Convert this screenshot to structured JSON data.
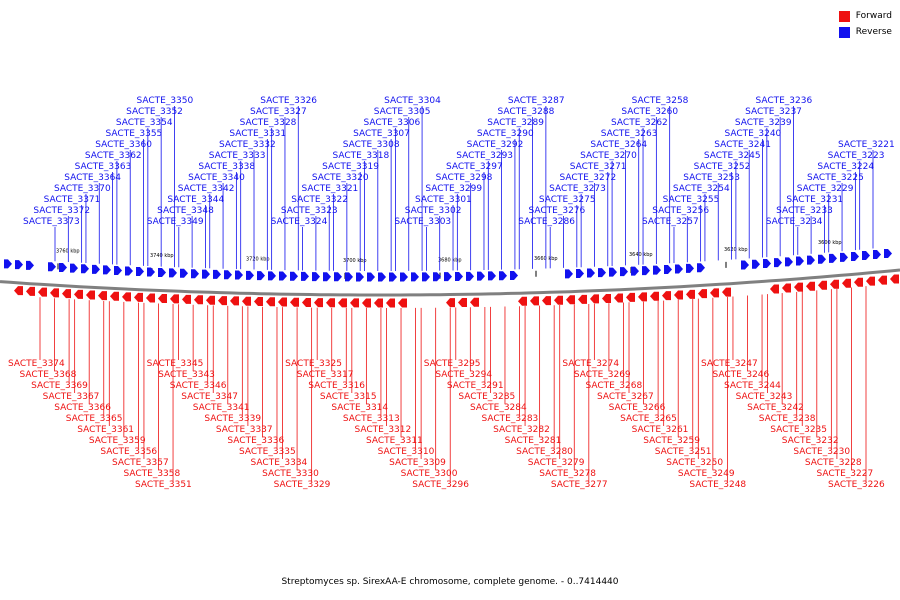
{
  "colors": {
    "forward": "#ee1111",
    "reverse": "#1111ee",
    "axis": "#808080"
  },
  "legend": [
    {
      "label": "Forward",
      "color": "#ee1111"
    },
    {
      "label": "Reverse",
      "color": "#1111ee"
    }
  ],
  "caption": "Streptomyces sp. SirexAA-E chromosome, complete genome. - 0..7414440",
  "ticks": [
    "3760 kbp",
    "3740 kbp",
    "3720 kbp",
    "3700 kbp",
    "3680 kbp",
    "3660 kbp",
    "3640 kbp",
    "3620 kbp",
    "3600 kbp"
  ],
  "reverse_labels": [
    "SACTE_3373",
    "SACTE_3372",
    "SACTE_3371",
    "SACTE_3370",
    "SACTE_3364",
    "SACTE_3363",
    "SACTE_3362",
    "SACTE_3360",
    "SACTE_3355",
    "SACTE_3354",
    "SACTE_3352",
    "SACTE_3350",
    "SACTE_3349",
    "SACTE_3348",
    "SACTE_3344",
    "SACTE_3342",
    "SACTE_3340",
    "SACTE_3338",
    "SACTE_3333",
    "SACTE_3332",
    "SACTE_3331",
    "SACTE_3328",
    "SACTE_3327",
    "SACTE_3326",
    "SACTE_3324",
    "SACTE_3323",
    "SACTE_3322",
    "SACTE_3321",
    "SACTE_3320",
    "SACTE_3319",
    "SACTE_3318",
    "SACTE_3308",
    "SACTE_3307",
    "SACTE_3306",
    "SACTE_3305",
    "SACTE_3304",
    "SACTE_3303",
    "SACTE_3302",
    "SACTE_3301",
    "SACTE_3299",
    "SACTE_3298",
    "SACTE_3297",
    "SACTE_3293",
    "SACTE_3292",
    "SACTE_3290",
    "SACTE_3289",
    "SACTE_3288",
    "SACTE_3287",
    "SACTE_3286",
    "SACTE_3276",
    "SACTE_3275",
    "SACTE_3273",
    "SACTE_3272",
    "SACTE_3271",
    "SACTE_3270",
    "SACTE_3264",
    "SACTE_3263",
    "SACTE_3262",
    "SACTE_3260",
    "SACTE_3258",
    "SACTE_3257",
    "SACTE_3256",
    "SACTE_3255",
    "SACTE_3254",
    "SACTE_3253",
    "SACTE_3252",
    "SACTE_3245",
    "SACTE_3241",
    "SACTE_3240",
    "SACTE_3239",
    "SACTE_3237",
    "SACTE_3236",
    "SACTE_3234",
    "SACTE_3233",
    "SACTE_3231",
    "SACTE_3229",
    "SACTE_3225",
    "SACTE_3224",
    "SACTE_3223",
    "SACTE_3221"
  ],
  "forward_labels": [
    "SACTE_3374",
    "SACTE_3368",
    "SACTE_3369",
    "SACTE_3367",
    "SACTE_3366",
    "SACTE_3365",
    "SACTE_3361",
    "SACTE_3359",
    "SACTE_3356",
    "SACTE_3357",
    "SACTE_3358",
    "SACTE_3351",
    "SACTE_3345",
    "SACTE_3343",
    "SACTE_3346",
    "SACTE_3347",
    "SACTE_3341",
    "SACTE_3339",
    "SACTE_3337",
    "SACTE_3336",
    "SACTE_3335",
    "SACTE_3334",
    "SACTE_3330",
    "SACTE_3329",
    "SACTE_3325",
    "SACTE_3317",
    "SACTE_3316",
    "SACTE_3315",
    "SACTE_3314",
    "SACTE_3313",
    "SACTE_3312",
    "SACTE_3311",
    "SACTE_3310",
    "SACTE_3309",
    "SACTE_3300",
    "SACTE_3296",
    "SACTE_3295",
    "SACTE_3294",
    "SACTE_3291",
    "SACTE_3285",
    "SACTE_3284",
    "SACTE_3283",
    "SACTE_3282",
    "SACTE_3281",
    "SACTE_3280",
    "SACTE_3279",
    "SACTE_3278",
    "SACTE_3277",
    "SACTE_3274",
    "SACTE_3269",
    "SACTE_3268",
    "SACTE_3267",
    "SACTE_3266",
    "SACTE_3265",
    "SACTE_3261",
    "SACTE_3259",
    "SACTE_3251",
    "SACTE_3250",
    "SACTE_3249",
    "SACTE_3248",
    "SACTE_3247",
    "SACTE_3246",
    "SACTE_3244",
    "SACTE_3243",
    "SACTE_3242",
    "SACTE_3238",
    "SACTE_3235",
    "SACTE_3232",
    "SACTE_3230",
    "SACTE_3228",
    "SACTE_3227",
    "SACTE_3226"
  ]
}
